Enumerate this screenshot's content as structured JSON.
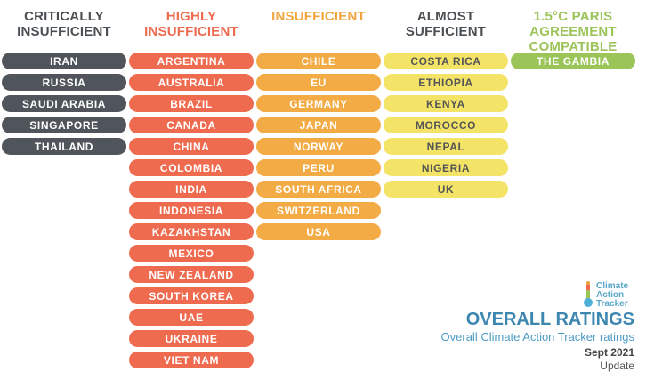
{
  "chart_data": {
    "type": "table",
    "columns": [
      {
        "header": [
          "CRITICALLY",
          "INSUFFICIENT"
        ],
        "header_color": "#4a4f54",
        "pill_color": "#4f555a",
        "countries": [
          "IRAN",
          "RUSSIA",
          "SAUDI ARABIA",
          "SINGAPORE",
          "THAILAND"
        ]
      },
      {
        "header": [
          "HIGHLY",
          "INSUFFICIENT"
        ],
        "header_color": "#ee6a4f",
        "pill_color": "#ef6b4f",
        "countries": [
          "ARGENTINA",
          "AUSTRALIA",
          "BRAZIL",
          "CANADA",
          "CHINA",
          "COLOMBIA",
          "INDIA",
          "INDONESIA",
          "KAZAKHSTAN",
          "MEXICO",
          "NEW ZEALAND",
          "SOUTH KOREA",
          "UAE",
          "UKRAINE",
          "VIET NAM"
        ]
      },
      {
        "header": [
          "INSUFFICIENT"
        ],
        "header_color": "#f2a53e",
        "pill_color": "#f3ab45",
        "countries": [
          "CHILE",
          "EU",
          "GERMANY",
          "JAPAN",
          "NORWAY",
          "PERU",
          "SOUTH AFRICA",
          "SWITZERLAND",
          "USA"
        ]
      },
      {
        "header": [
          "ALMOST",
          "SUFFICIENT"
        ],
        "header_color": "#4a4f54",
        "pill_color": "#f3e468",
        "pill_text_dark": true,
        "countries": [
          "COSTA RICA",
          "ETHIOPIA",
          "KENYA",
          "MOROCCO",
          "NEPAL",
          "NIGERIA",
          "UK"
        ]
      },
      {
        "header": [
          "1.5°C PARIS",
          "AGREEMENT",
          "COMPATIBLE"
        ],
        "header_color": "#9cc45a",
        "pill_color": "#9bc558",
        "countries": [
          "THE GAMBIA"
        ]
      }
    ]
  },
  "logo": {
    "lines": [
      "Climate",
      "Action",
      "Tracker"
    ]
  },
  "footer": {
    "title": "OVERALL RATINGS",
    "subtitle": "Overall Climate Action Tracker ratings",
    "date": "Sept 2021",
    "note": "Update"
  },
  "colors": {
    "title": "#3c86b0",
    "subtitle": "#4d9bc4",
    "date": "#444444"
  }
}
